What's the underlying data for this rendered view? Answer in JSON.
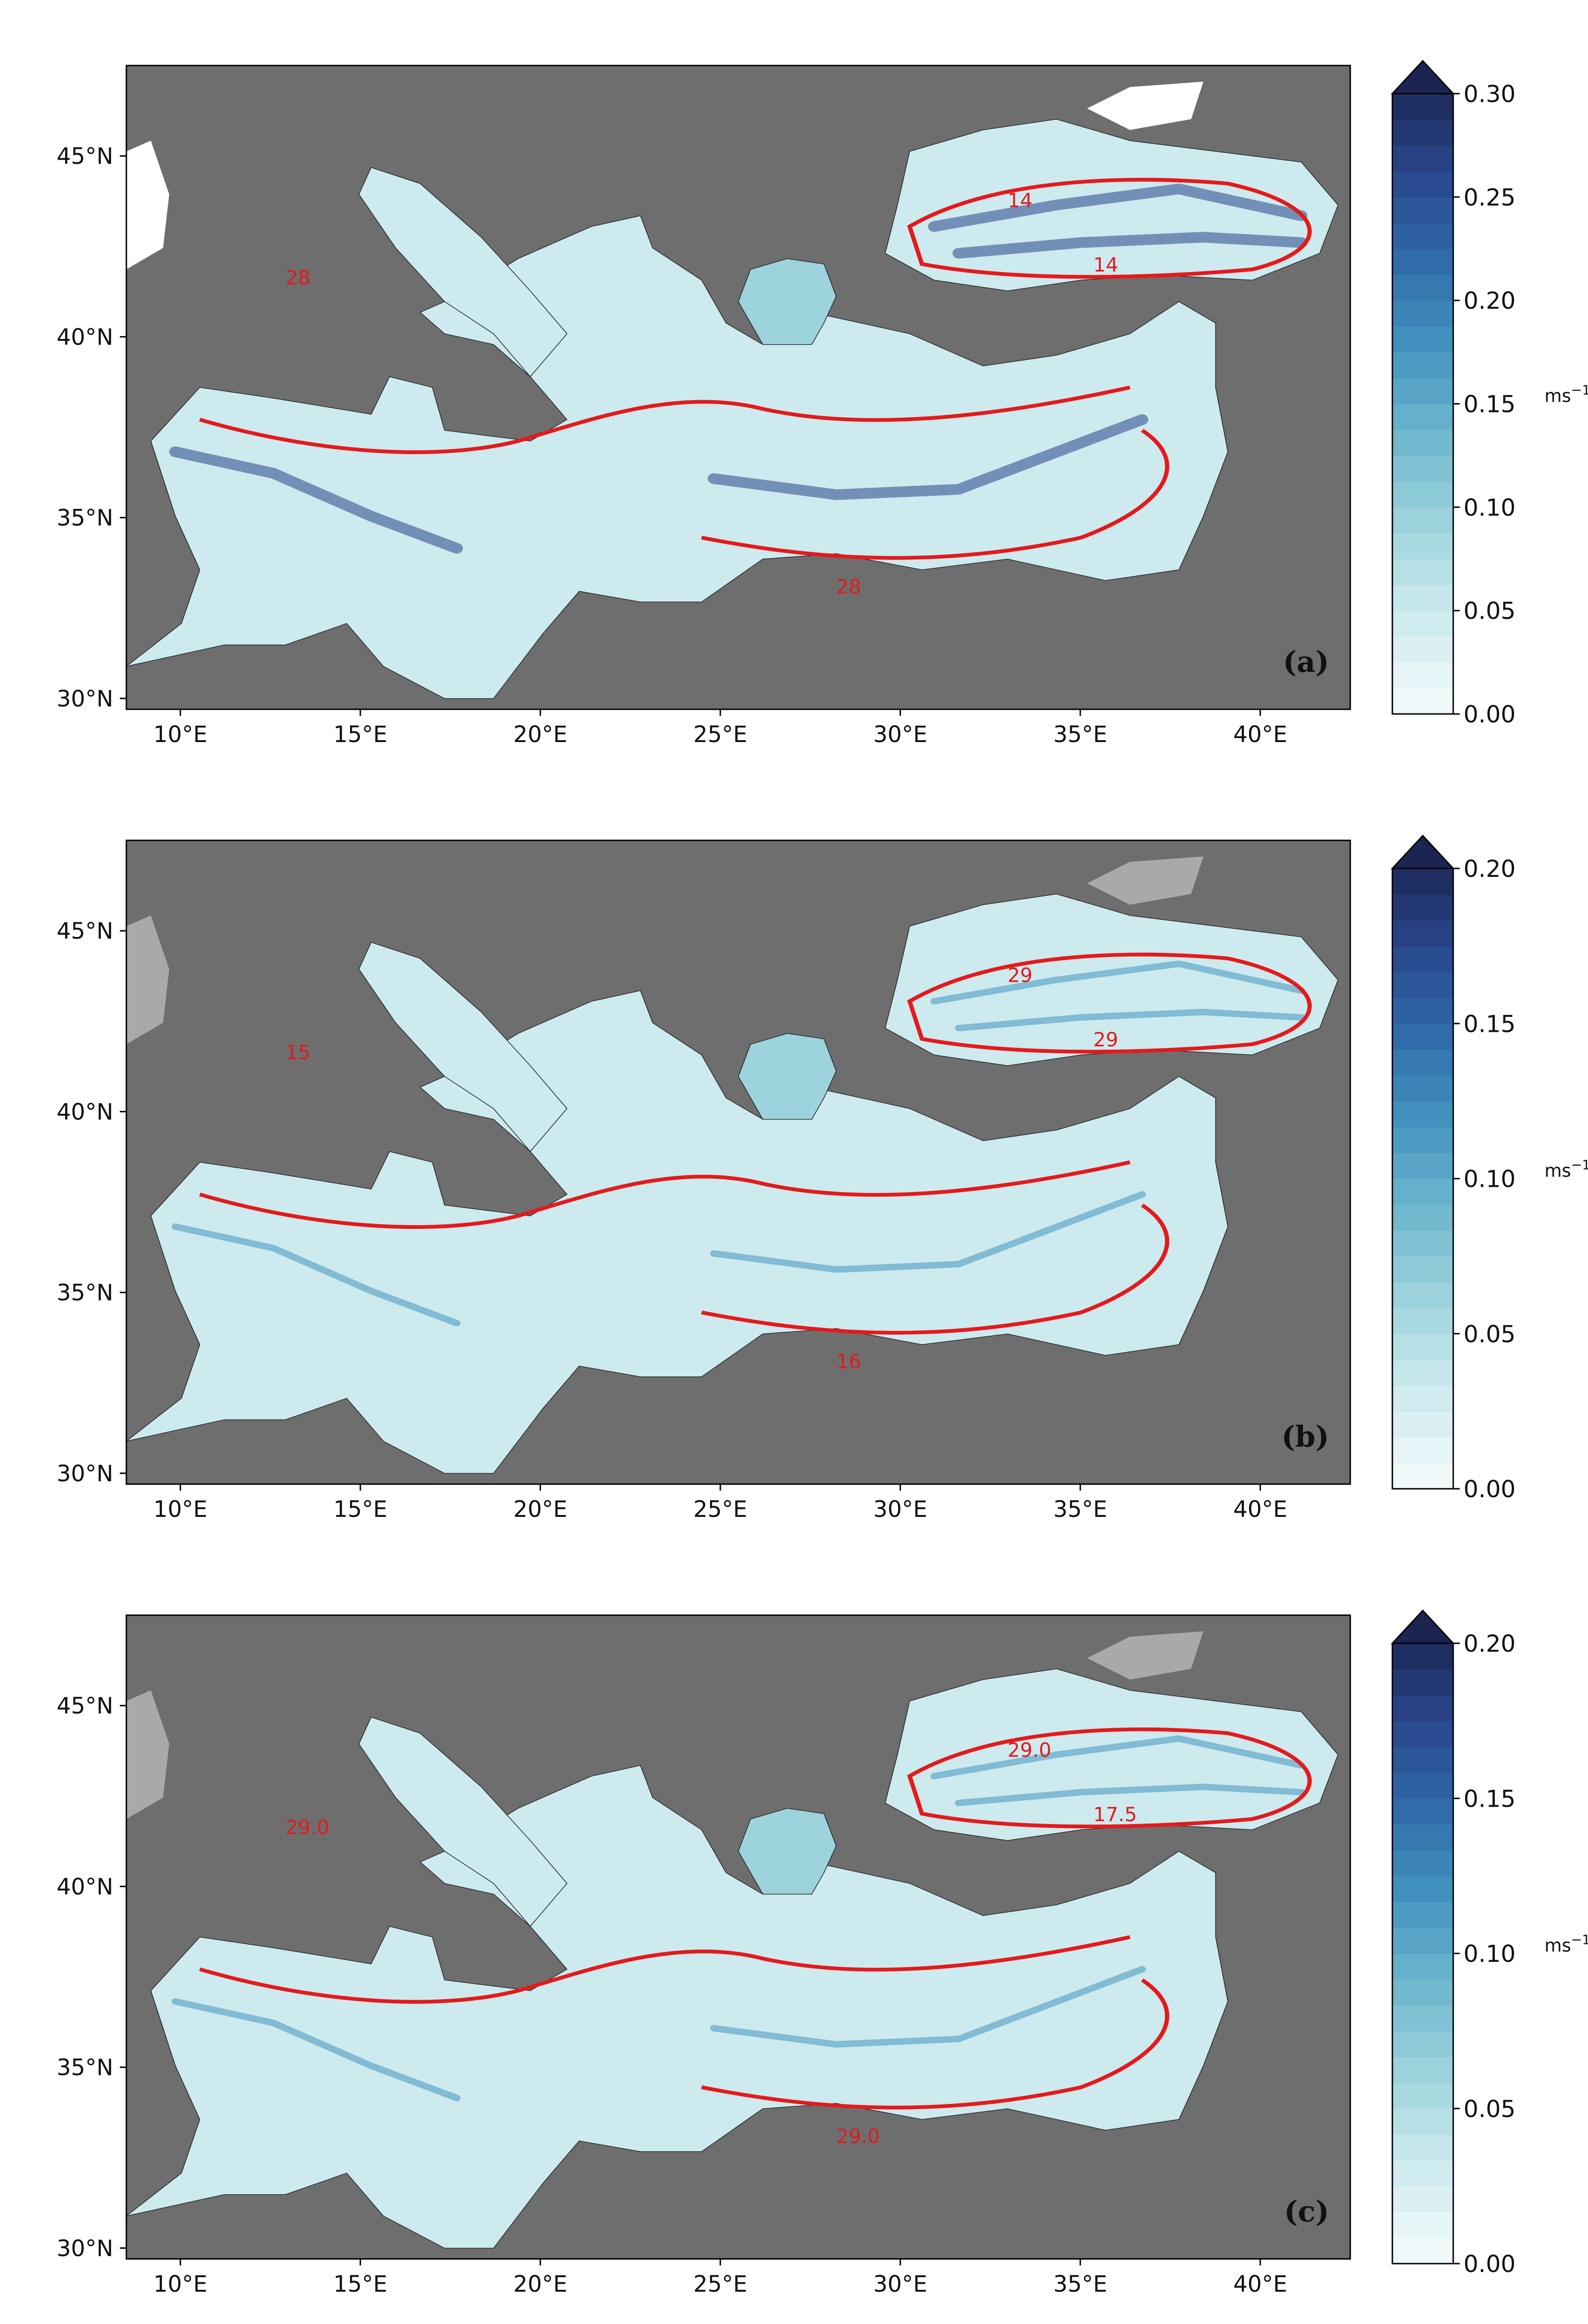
{
  "colors": {
    "background": "#ffffff",
    "sea_grey": "#6e6e6e",
    "land_grey": "#a9a9a9",
    "contour": "#e41a1c",
    "speed_colormap": [
      "#f0f9fa",
      "#cdeaee",
      "#9dd3dc",
      "#6eb7cd",
      "#4493c0",
      "#2f6aa8",
      "#28458a",
      "#1c2451"
    ]
  },
  "map": {
    "lon_range": [
      8.5,
      42.5
    ],
    "lat_range": [
      29.7,
      47.5
    ],
    "lon_ticks": [
      "10°E",
      "15°E",
      "20°E",
      "25°E",
      "30°E",
      "35°E",
      "40°E"
    ],
    "lat_ticks": [
      "30°N",
      "35°N",
      "40°N",
      "45°N"
    ],
    "lon_tick_values": [
      10,
      15,
      20,
      25,
      30,
      35,
      40
    ],
    "lat_tick_values": [
      30,
      35,
      40,
      45
    ]
  },
  "panels": [
    {
      "label": "(a)",
      "colorbar": {
        "ticks": [
          "0.00",
          "0.05",
          "0.10",
          "0.15",
          "0.20",
          "0.25",
          "0.30"
        ],
        "tick_values": [
          0,
          0.05,
          0.1,
          0.15,
          0.2,
          0.25,
          0.3
        ],
        "max": 0.3,
        "unit": "ms",
        "unit_exponent": "−1",
        "unit_value": 0.15
      },
      "contour_labels": [
        "28",
        "28",
        "14",
        "14"
      ]
    },
    {
      "label": "(b)",
      "colorbar": {
        "ticks": [
          "0.00",
          "0.05",
          "0.10",
          "0.15",
          "0.20"
        ],
        "tick_values": [
          0,
          0.05,
          0.1,
          0.15,
          0.2
        ],
        "max": 0.2,
        "unit": "ms",
        "unit_exponent": "−1",
        "unit_value": 0.1
      },
      "contour_labels": [
        "15",
        "16",
        "29",
        "29"
      ]
    },
    {
      "label": "(c)",
      "colorbar": {
        "ticks": [
          "0.00",
          "0.05",
          "0.10",
          "0.15",
          "0.20"
        ],
        "tick_values": [
          0,
          0.05,
          0.1,
          0.15,
          0.2
        ],
        "max": 0.2,
        "unit": "ms",
        "unit_exponent": "−1",
        "unit_value": 0.1
      },
      "contour_labels": [
        "29.0",
        "29.0",
        "17.5",
        "29.0"
      ]
    }
  ]
}
